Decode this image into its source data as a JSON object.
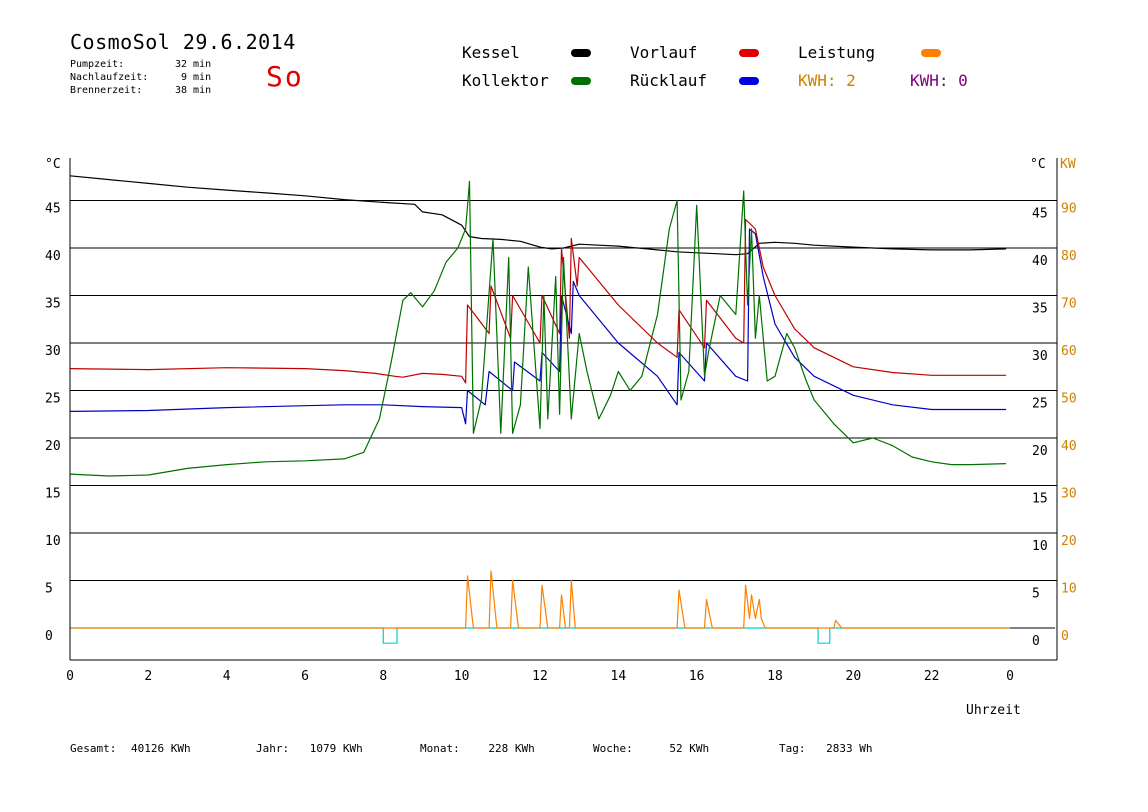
{
  "header": {
    "title": "CosmoSol 29.6.2014",
    "day": "So",
    "info": [
      {
        "label": "Pumpzeit:",
        "value": "32 min"
      },
      {
        "label": "Nachlaufzeit:",
        "value": "9 min"
      },
      {
        "label": "Brennerzeit:",
        "value": "38 min"
      }
    ]
  },
  "legend": {
    "kessel": "Kessel",
    "kollektor": "Kollektor",
    "vorlauf": "Vorlauf",
    "ruecklauf": "Rücklauf",
    "leistung": "Leistung",
    "kwh1": "KWH: 2",
    "kwh2": "KWH: 0"
  },
  "colors": {
    "kessel": "#000000",
    "kollektor": "#007000",
    "vorlauf": "#c00000",
    "ruecklauf": "#0000c0",
    "leistung": "#ff8000",
    "kwh2": "#800080",
    "pump": "#00d0d0",
    "kw_axis": "#d08000"
  },
  "footer": [
    {
      "label": "Gesamt:",
      "value": "40126 KWh"
    },
    {
      "label": "Jahr:",
      "value": "1079 KWh"
    },
    {
      "label": "Monat:",
      "value": "228 KWh"
    },
    {
      "label": "Woche:",
      "value": "52 KWh"
    },
    {
      "label": "Tag:",
      "value": "2833 Wh"
    }
  ],
  "chart_data": {
    "type": "line",
    "xlabel": "Uhrzeit",
    "ylabel": "°C",
    "ylabel_right": "°C",
    "ylabel_right_kw": "KW",
    "xlim": [
      0,
      24
    ],
    "ylim": [
      0,
      50
    ],
    "x_ticks": [
      "0",
      "2",
      "4",
      "6",
      "8",
      "10",
      "12",
      "14",
      "16",
      "18",
      "20",
      "22",
      "0"
    ],
    "y_ticks": [
      0,
      5,
      10,
      15,
      20,
      25,
      30,
      35,
      40,
      45
    ],
    "y_ticks_kw": [
      0,
      10,
      20,
      30,
      40,
      50,
      60,
      70,
      80,
      90
    ],
    "grid": "horizontal",
    "series": [
      {
        "name": "Kessel",
        "key": "kessel",
        "x": [
          0,
          1,
          2,
          3,
          4,
          5,
          6,
          7,
          8,
          8.8,
          9.0,
          9.5,
          10.0,
          10.2,
          10.5,
          11.0,
          11.5,
          12.0,
          12.3,
          12.6,
          13.0,
          13.5,
          14.0,
          14.5,
          15.0,
          15.5,
          16.0,
          16.5,
          17.0,
          17.3,
          17.6,
          18.0,
          18.5,
          19.0,
          20.0,
          21.0,
          22.0,
          23.0,
          23.9
        ],
        "y": [
          47.6,
          47.2,
          46.8,
          46.4,
          46.1,
          45.8,
          45.5,
          45.1,
          44.8,
          44.6,
          43.8,
          43.5,
          42.4,
          41.2,
          41.0,
          40.9,
          40.7,
          40.1,
          39.9,
          40.0,
          40.4,
          40.3,
          40.2,
          40.0,
          39.8,
          39.6,
          39.5,
          39.4,
          39.3,
          39.4,
          40.5,
          40.6,
          40.5,
          40.3,
          40.1,
          39.9,
          39.8,
          39.8,
          39.9
        ]
      },
      {
        "name": "Kollektor",
        "key": "kollektor",
        "x": [
          0,
          1,
          2,
          3,
          4,
          5,
          6,
          7,
          7.5,
          7.9,
          8.2,
          8.5,
          8.7,
          9.0,
          9.3,
          9.6,
          9.9,
          10.1,
          10.2,
          10.3,
          10.5,
          10.8,
          11.0,
          11.2,
          11.3,
          11.5,
          11.7,
          12.0,
          12.1,
          12.2,
          12.4,
          12.5,
          12.6,
          12.8,
          13.0,
          13.2,
          13.5,
          13.8,
          14.0,
          14.3,
          14.6,
          15.0,
          15.3,
          15.5,
          15.6,
          15.8,
          16.0,
          16.2,
          16.3,
          16.6,
          17.0,
          17.2,
          17.3,
          17.4,
          17.5,
          17.6,
          17.8,
          18.0,
          18.3,
          18.5,
          18.8,
          19.0,
          19.5,
          20.0,
          20.5,
          21.0,
          21.5,
          22.0,
          22.5,
          23.0,
          23.9
        ],
        "y": [
          16.2,
          16.0,
          16.1,
          16.8,
          17.2,
          17.5,
          17.6,
          17.8,
          18.5,
          22.0,
          28.0,
          34.5,
          35.3,
          33.8,
          35.5,
          38.5,
          40.0,
          42.0,
          47.0,
          20.5,
          24.0,
          41.0,
          20.5,
          39.0,
          20.5,
          23.5,
          38.0,
          21.0,
          35.0,
          22.0,
          37.0,
          22.5,
          39.0,
          22.0,
          31.0,
          27.0,
          22.0,
          24.5,
          27.0,
          25.0,
          26.5,
          33.0,
          42.0,
          45.0,
          24.0,
          27.0,
          44.5,
          26.5,
          29.0,
          35.0,
          33.0,
          46.0,
          34.0,
          42.0,
          30.5,
          35.0,
          26.0,
          26.5,
          31.0,
          29.5,
          26.0,
          24.0,
          21.5,
          19.5,
          20.0,
          19.2,
          18.0,
          17.5,
          17.2,
          17.2,
          17.3
        ]
      },
      {
        "name": "Vorlauf",
        "key": "vorlauf",
        "x": [
          0,
          2,
          4,
          6,
          7,
          7.8,
          8.3,
          8.5,
          9.0,
          9.5,
          10.0,
          10.1,
          10.15,
          10.7,
          10.75,
          11.25,
          11.3,
          12.0,
          12.05,
          12.5,
          12.55,
          12.75,
          12.8,
          12.95,
          13.0,
          14.0,
          15.0,
          15.5,
          15.55,
          16.2,
          16.25,
          17.0,
          17.2,
          17.25,
          17.5,
          17.7,
          18.0,
          18.5,
          19.0,
          20.0,
          21.0,
          22.0,
          23.0,
          23.9
        ],
        "y": [
          27.3,
          27.2,
          27.4,
          27.3,
          27.1,
          26.8,
          26.5,
          26.4,
          26.8,
          26.7,
          26.5,
          25.8,
          34.0,
          31.0,
          36.0,
          30.5,
          35.0,
          30.0,
          35.0,
          31.0,
          40.0,
          30.5,
          41.0,
          36.0,
          39.0,
          34.0,
          30.0,
          28.5,
          33.5,
          29.5,
          34.5,
          30.5,
          30.0,
          43.0,
          42.0,
          38.0,
          35.0,
          31.5,
          29.5,
          27.5,
          26.9,
          26.6,
          26.6,
          26.6
        ]
      },
      {
        "name": "Rücklauf",
        "key": "ruecklauf",
        "x": [
          0,
          2,
          4,
          6,
          7,
          8,
          9,
          10.0,
          10.1,
          10.15,
          10.6,
          10.7,
          11.3,
          11.35,
          12.0,
          12.05,
          12.5,
          12.55,
          12.8,
          12.85,
          13.0,
          14.0,
          15.0,
          15.5,
          15.55,
          16.2,
          16.25,
          17.0,
          17.3,
          17.35,
          17.5,
          17.7,
          18.0,
          18.5,
          19.0,
          20.0,
          21.0,
          22.0,
          23.0,
          23.9
        ],
        "y": [
          22.8,
          22.9,
          23.2,
          23.4,
          23.5,
          23.5,
          23.3,
          23.2,
          21.5,
          25.0,
          23.5,
          27.0,
          25.0,
          28.0,
          26.0,
          29.0,
          27.0,
          35.0,
          31.0,
          36.5,
          35.0,
          30.0,
          26.5,
          23.5,
          29.0,
          26.0,
          30.0,
          26.5,
          26.0,
          42.0,
          41.5,
          37.0,
          32.0,
          28.5,
          26.5,
          24.5,
          23.5,
          23.0,
          23.0,
          23.0
        ]
      },
      {
        "name": "Leistung",
        "key": "leistung",
        "x": [
          0,
          10.1,
          10.15,
          10.3,
          10.7,
          10.75,
          10.9,
          11.25,
          11.3,
          11.45,
          12.0,
          12.05,
          12.2,
          12.5,
          12.55,
          12.65,
          12.75,
          12.8,
          12.9,
          15.5,
          15.55,
          15.7,
          16.2,
          16.25,
          16.4,
          17.2,
          17.25,
          17.35,
          17.4,
          17.5,
          17.6,
          17.65,
          17.75,
          19.5,
          19.55,
          19.7,
          24.0
        ],
        "y": [
          0,
          0,
          5.5,
          0,
          0,
          6.0,
          0,
          0,
          5.0,
          0,
          0,
          4.5,
          0,
          0,
          3.5,
          0,
          0,
          5.0,
          0,
          0,
          4.0,
          0,
          0,
          3.0,
          0,
          0,
          4.5,
          1.0,
          3.5,
          1.0,
          3.0,
          1.0,
          0,
          0,
          0.8,
          0,
          0
        ]
      },
      {
        "name": "Pumpe",
        "key": "pump",
        "x": [
          0,
          8.0,
          8.0,
          8.35,
          8.35,
          19.1,
          19.1,
          19.4,
          19.4,
          24.0
        ],
        "y": [
          0,
          0,
          -1.6,
          -1.6,
          0,
          0,
          -1.6,
          -1.6,
          0,
          0
        ]
      }
    ]
  }
}
